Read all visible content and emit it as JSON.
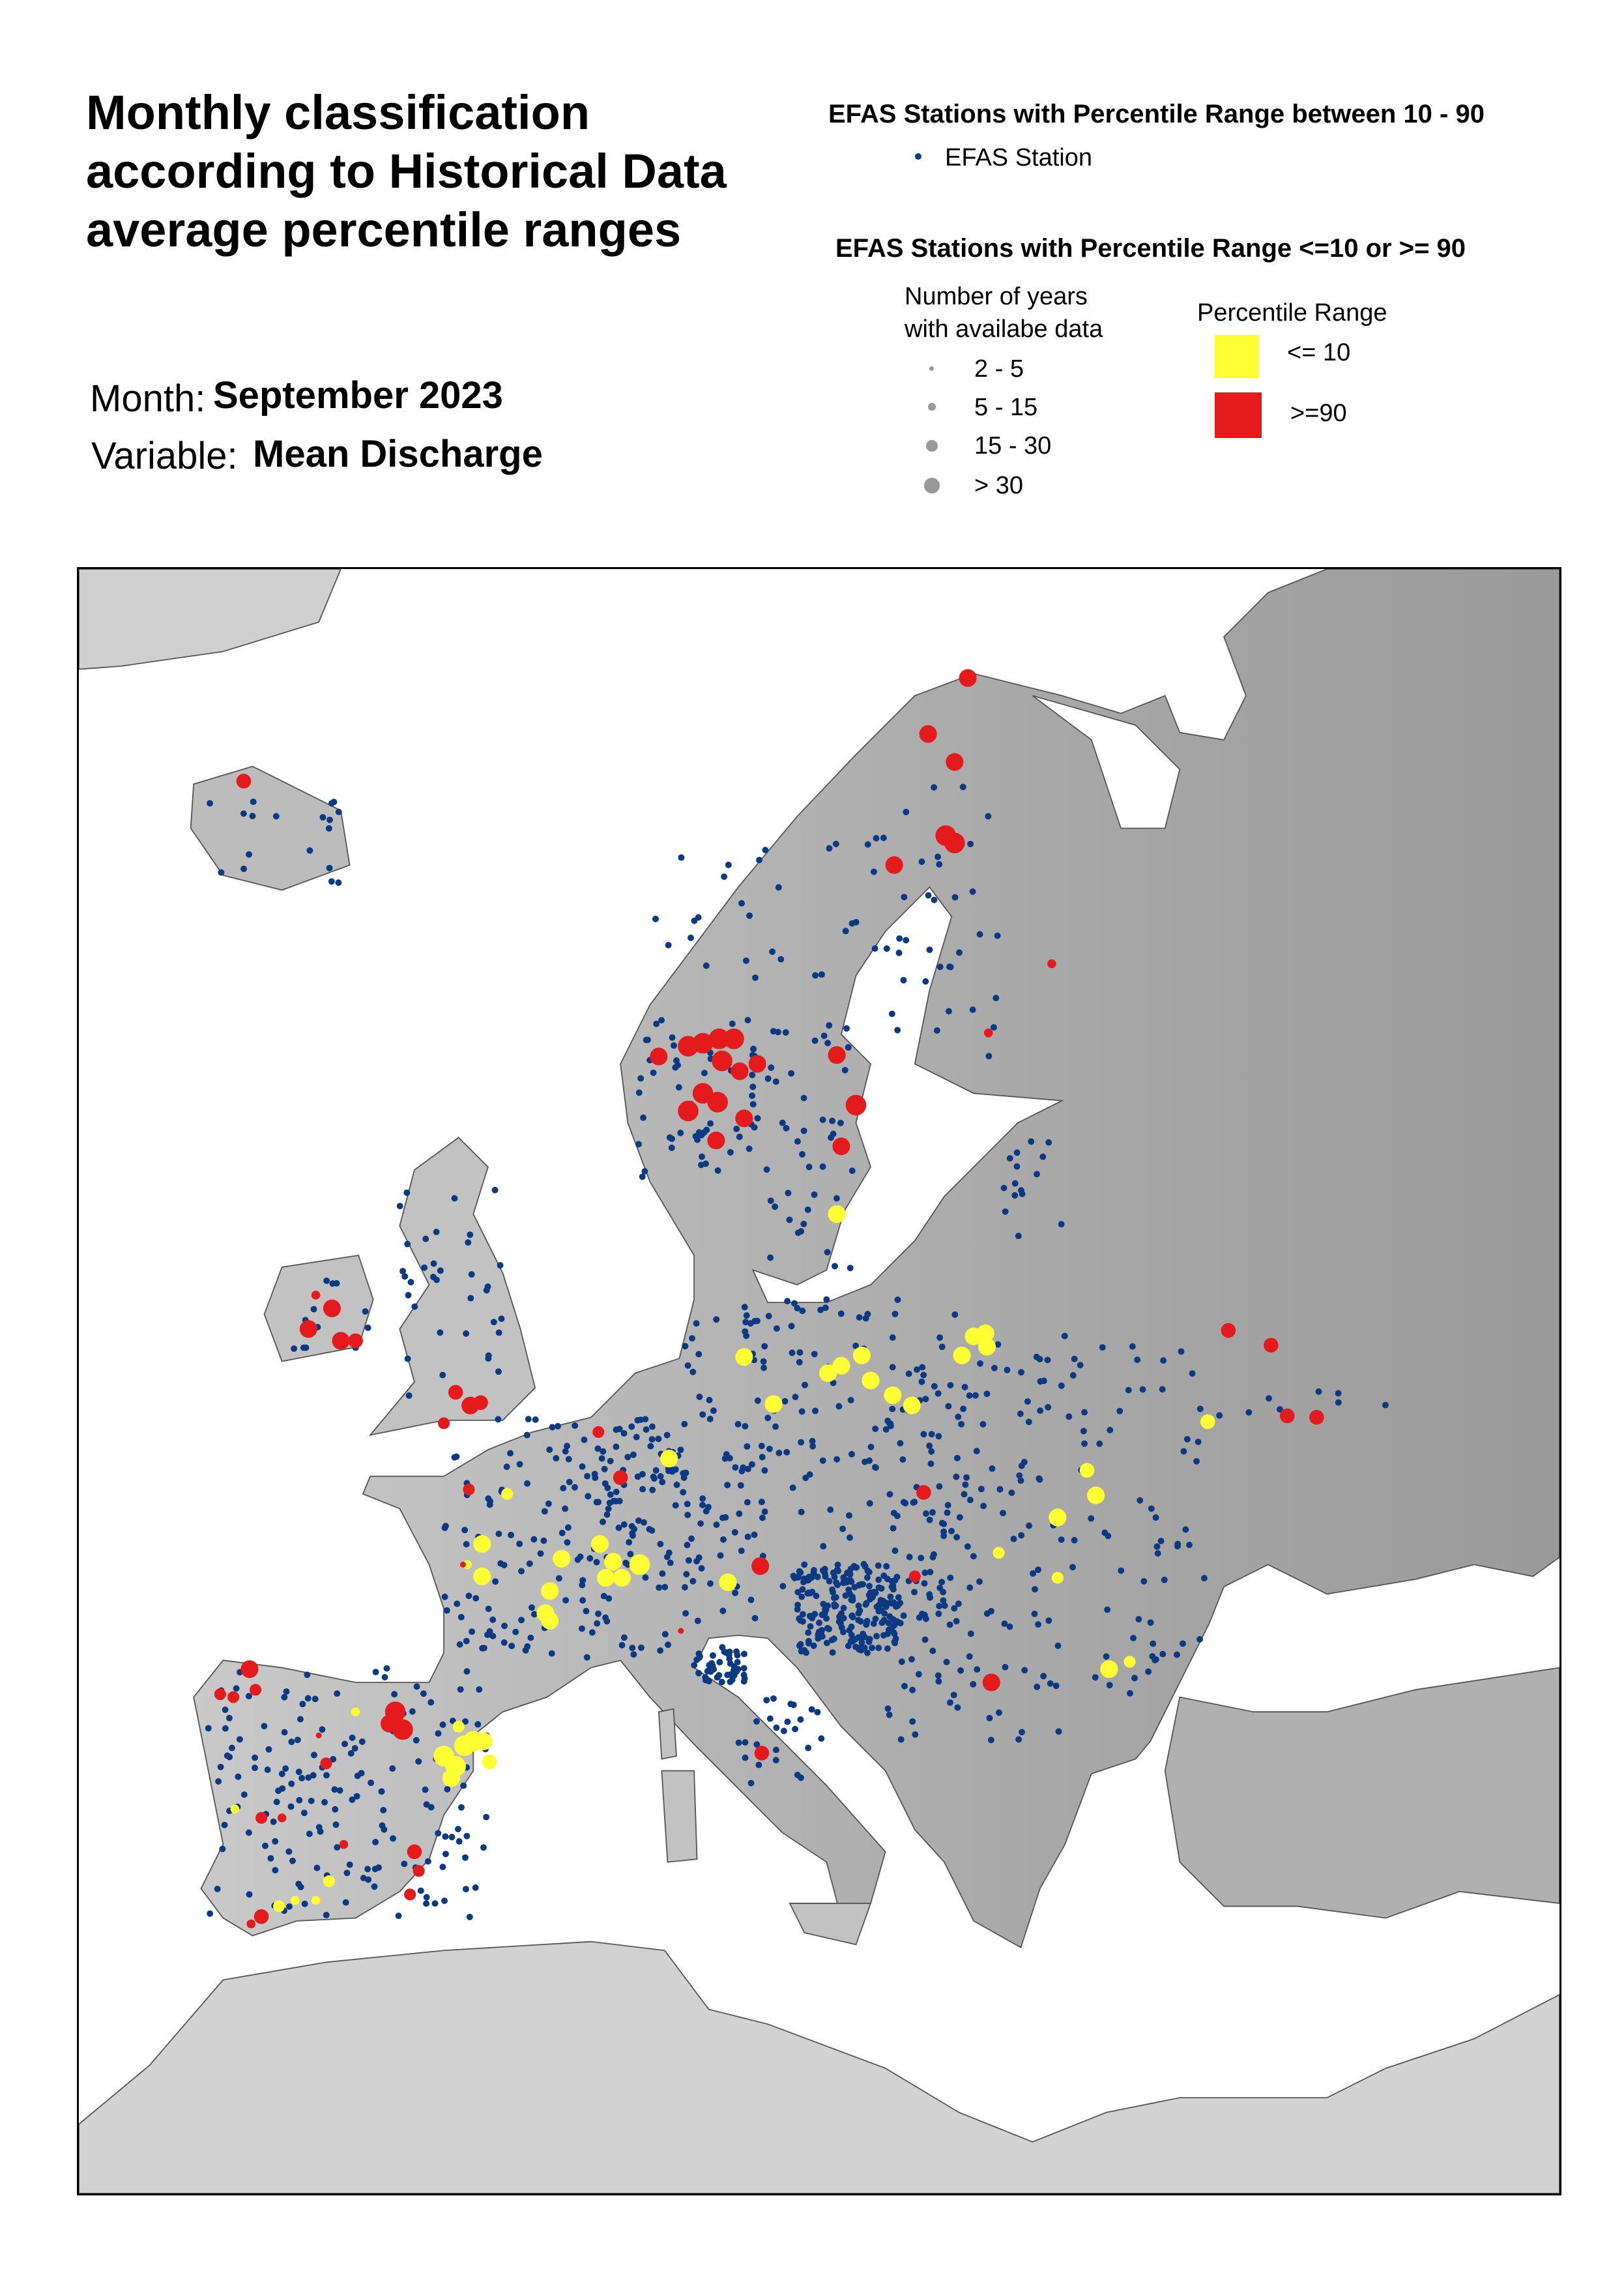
{
  "title": "Monthly classification according to Historical Data average percentile ranges",
  "month": {
    "label": "Month:",
    "value": "September 2023"
  },
  "variable": {
    "label": "Variable:",
    "value": "Mean Discharge"
  },
  "legend": {
    "normal_heading": "EFAS Stations with Percentile Range between 10 - 90",
    "normal_item": "EFAS Station",
    "extreme_heading": "EFAS Stations with Percentile Range <=10 or >= 90",
    "years_heading_1": "Number of years",
    "years_heading_2": "with availabe data",
    "years_classes": [
      "2 - 5",
      "5 - 15",
      "15 - 30",
      "> 30"
    ],
    "percentile_heading": "Percentile Range",
    "percentile_low": "<= 10",
    "percentile_high": ">=90"
  },
  "colors": {
    "station": "#0b3a82",
    "low": "#ffff33",
    "high": "#e41a1c",
    "size_legend": "#999999",
    "land": "#bdbdbd",
    "sea": "#ffffff"
  },
  "chart_data": {
    "type": "scatter",
    "title": "Monthly classification according to Historical Data average percentile ranges",
    "categories": [
      "EFAS Station",
      "<= 10",
      ">=90"
    ],
    "size_classes": [
      "2 - 5",
      "5 - 15",
      "15 - 30",
      "> 30"
    ],
    "basemap": "Europe shaded relief"
  }
}
